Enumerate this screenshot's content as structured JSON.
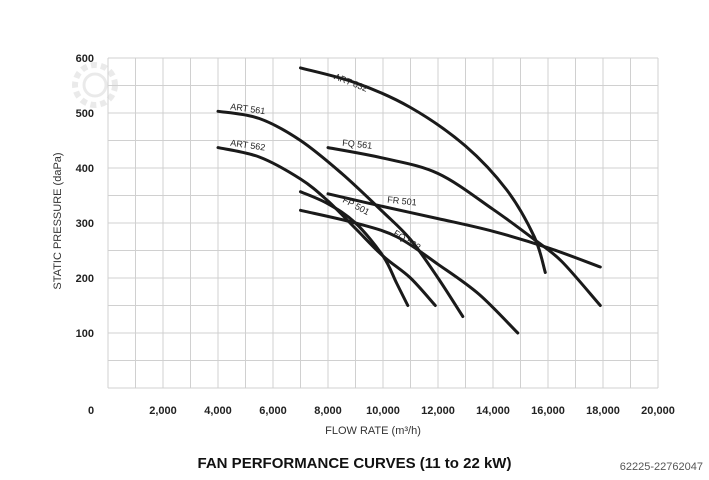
{
  "chart_data": {
    "type": "line",
    "title": "FAN PERFORMANCE CURVES (11 to 22 kW)",
    "xlabel": "FLOW RATE (m³/h)",
    "ylabel": "STATIC PRESSURE (daPa)",
    "xlim": [
      0,
      20000
    ],
    "ylim": [
      0,
      600
    ],
    "x_ticks": [
      "0",
      "2,000",
      "4,000",
      "6,000",
      "8,000",
      "10,000",
      "12,000",
      "14,000",
      "16,000",
      "18,000",
      "20,000"
    ],
    "y_ticks": [
      "100",
      "200",
      "300",
      "400",
      "500",
      "600"
    ],
    "grid": true,
    "series": [
      {
        "name": "ART 632",
        "points": [
          [
            7000,
            582
          ],
          [
            9000,
            555
          ],
          [
            11000,
            510
          ],
          [
            13000,
            440
          ],
          [
            14500,
            360
          ],
          [
            15500,
            275
          ],
          [
            15900,
            210
          ]
        ]
      },
      {
        "name": "ART 561",
        "points": [
          [
            4000,
            503
          ],
          [
            5500,
            490
          ],
          [
            7000,
            450
          ],
          [
            8500,
            390
          ],
          [
            10000,
            320
          ],
          [
            11000,
            270
          ],
          [
            12000,
            200
          ],
          [
            12900,
            130
          ]
        ]
      },
      {
        "name": "ART 562",
        "points": [
          [
            4000,
            437
          ],
          [
            5500,
            420
          ],
          [
            7000,
            380
          ],
          [
            8000,
            340
          ],
          [
            9000,
            290
          ],
          [
            10000,
            240
          ],
          [
            11000,
            200
          ],
          [
            11900,
            150
          ]
        ]
      },
      {
        "name": "FQ 561",
        "points": [
          [
            8000,
            437
          ],
          [
            10000,
            418
          ],
          [
            12000,
            390
          ],
          [
            14000,
            325
          ],
          [
            15500,
            270
          ],
          [
            16500,
            230
          ],
          [
            17900,
            150
          ]
        ]
      },
      {
        "name": "FR 501",
        "points": [
          [
            8000,
            353
          ],
          [
            10000,
            330
          ],
          [
            12000,
            308
          ],
          [
            14000,
            285
          ],
          [
            16000,
            255
          ],
          [
            17900,
            220
          ]
        ]
      },
      {
        "name": "FP 501",
        "points": [
          [
            7000,
            357
          ],
          [
            8000,
            335
          ],
          [
            9000,
            300
          ],
          [
            10000,
            240
          ],
          [
            10500,
            190
          ],
          [
            10900,
            150
          ]
        ]
      },
      {
        "name": "FQ 562",
        "points": [
          [
            7000,
            323
          ],
          [
            9000,
            300
          ],
          [
            10500,
            275
          ],
          [
            12000,
            225
          ],
          [
            13500,
            170
          ],
          [
            14900,
            100
          ]
        ]
      }
    ]
  },
  "image_ref": "62225-22762047"
}
